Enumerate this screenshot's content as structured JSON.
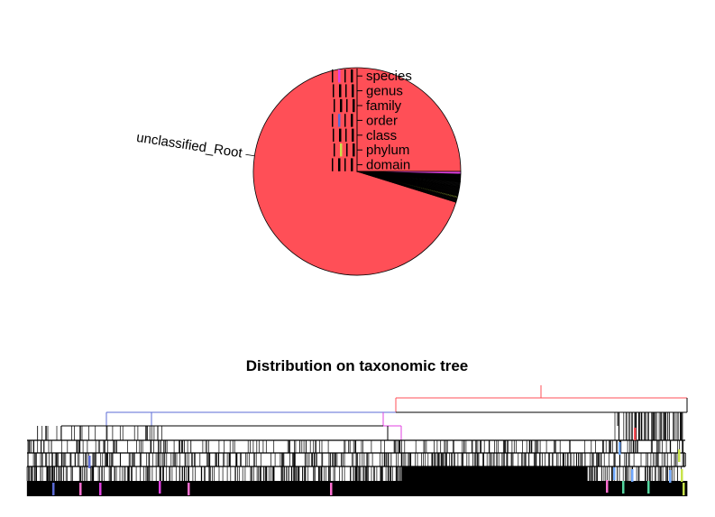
{
  "chart_data": [
    {
      "type": "pie",
      "slices": [
        {
          "label": "unclassified_Root",
          "fraction": 0.952,
          "color": "#FF4F57",
          "labeled": true
        },
        {
          "label": "",
          "fraction": 0.006,
          "color": "#111111",
          "labeled": false
        },
        {
          "label": "",
          "fraction": 0.004,
          "color": "#C8E34B",
          "labeled": false
        },
        {
          "label": "",
          "fraction": 0.014,
          "color": "#0A0A0A",
          "labeled": false
        },
        {
          "label": "",
          "fraction": 0.008,
          "color": "#161616",
          "labeled": false
        },
        {
          "label": "",
          "fraction": 0.012,
          "color": "#050505",
          "labeled": false
        },
        {
          "label": "",
          "fraction": 0.004,
          "color": "#E040E0",
          "labeled": false
        }
      ],
      "legend_ranks": [
        "species",
        "genus",
        "family",
        "order",
        "class",
        "phylum",
        "domain"
      ],
      "legend_colors": [
        "#E040E0",
        "#000000",
        "#000000",
        "#5B6BD6",
        "#000000",
        "#C8E34B",
        "#000000"
      ]
    },
    {
      "type": "tree",
      "title": "Distribution on taxonomic tree",
      "levels": 7,
      "accent_colors": [
        "#FF4F57",
        "#5B6BD6",
        "#E040E0",
        "#6FA8FF",
        "#C8E34B",
        "#55D6A0",
        "#FF6FD0"
      ]
    }
  ]
}
